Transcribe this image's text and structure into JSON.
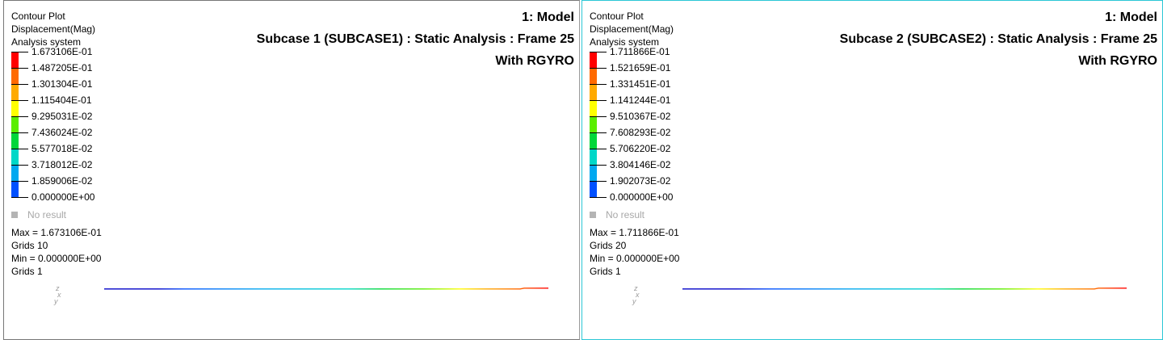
{
  "viewports": [
    {
      "info": [
        "Contour Plot",
        "Displacement(Mag)",
        "Analysis system"
      ],
      "title": [
        "1: Model",
        "Subcase 1 (SUBCASE1) : Static Analysis : Frame 25",
        "With RGYRO"
      ],
      "legend": [
        "1.673106E-01",
        "1.487205E-01",
        "1.301304E-01",
        "1.115404E-01",
        "9.295031E-02",
        "7.436024E-02",
        "5.577018E-02",
        "3.718012E-02",
        "1.859006E-02",
        "0.000000E+00"
      ],
      "no_result": "No result",
      "stats": [
        "Max = 1.673106E-01",
        "Grids 10",
        "Min = 0.000000E+00",
        "Grids 1"
      ],
      "triad": [
        "z",
        "x",
        "y"
      ]
    },
    {
      "info": [
        "Contour Plot",
        "Displacement(Mag)",
        "Analysis system"
      ],
      "title": [
        "1: Model",
        "Subcase 2 (SUBCASE2) : Static Analysis : Frame 25",
        "With RGYRO"
      ],
      "legend": [
        "1.711866E-01",
        "1.521659E-01",
        "1.331451E-01",
        "1.141244E-01",
        "9.510367E-02",
        "7.608293E-02",
        "5.706220E-02",
        "3.804146E-02",
        "1.902073E-02",
        "0.000000E+00"
      ],
      "no_result": "No result",
      "stats": [
        "Max = 1.711866E-01",
        "Grids 20",
        "Min = 0.000000E+00",
        "Grids 1"
      ],
      "triad": [
        "z",
        "x",
        "y"
      ]
    }
  ],
  "colors": {
    "contour": [
      "#ff0000",
      "#ff6a00",
      "#ffaa00",
      "#ffff00",
      "#5aee00",
      "#00d73a",
      "#00d7c8",
      "#00a8f0",
      "#0050ff",
      "#0000c8"
    ],
    "active_border": "#2bc7d6"
  }
}
